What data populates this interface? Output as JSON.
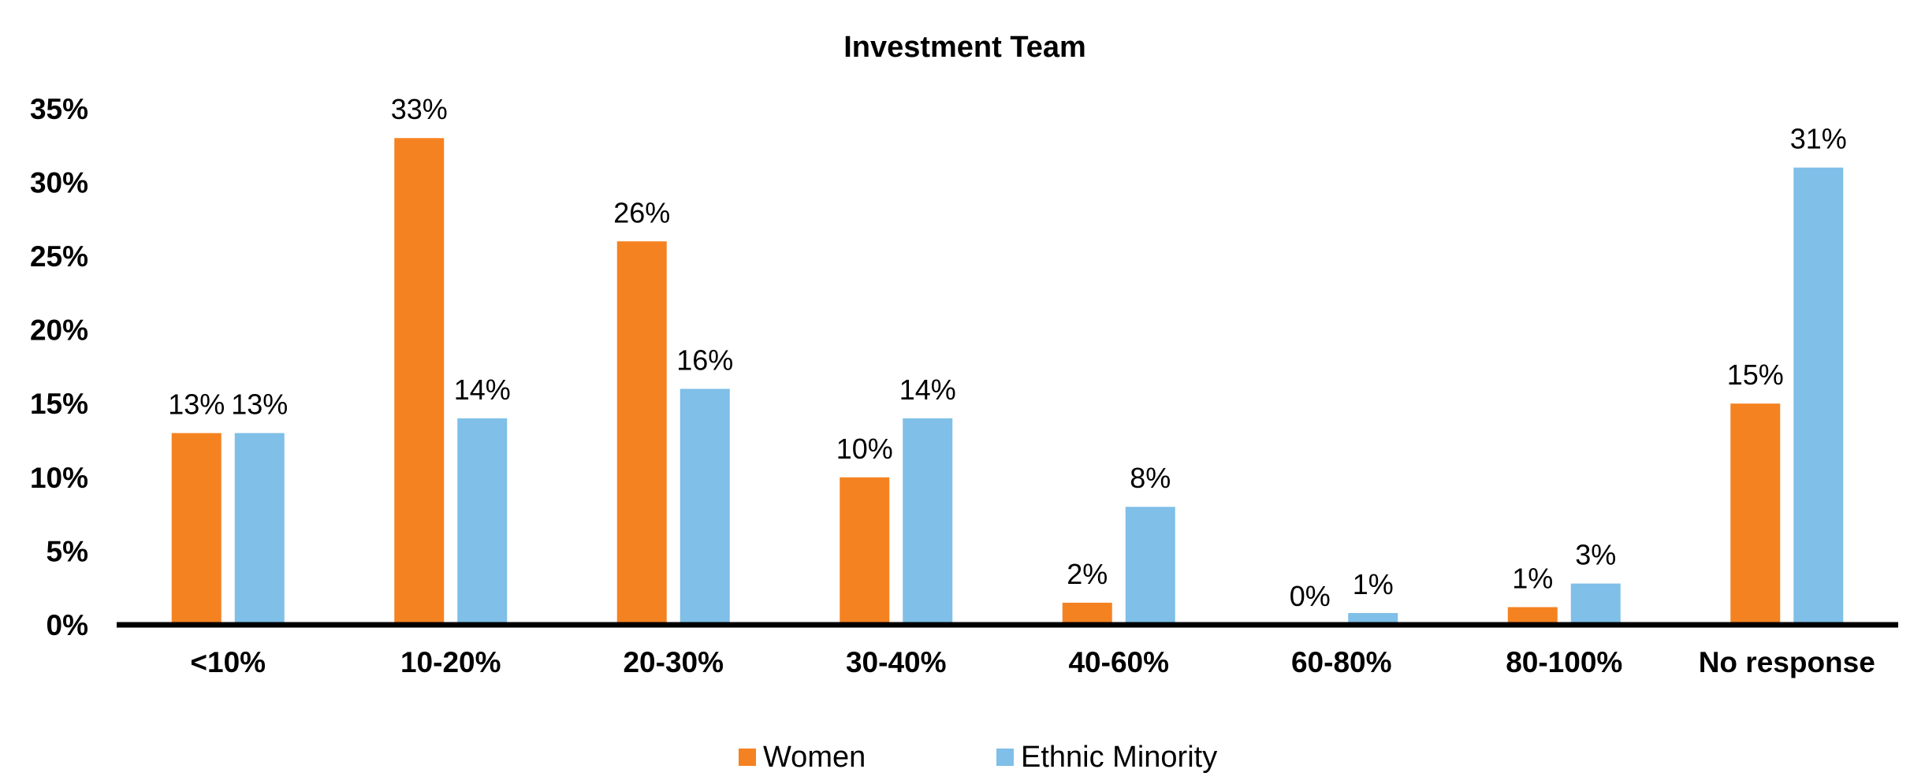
{
  "chart_data": {
    "type": "bar",
    "title": "Investment Team",
    "xlabel": "",
    "ylabel": "",
    "categories": [
      "<10%",
      "10-20%",
      "20-30%",
      "30-40%",
      "40-60%",
      "60-80%",
      "80-100%",
      "No response"
    ],
    "series": [
      {
        "name": "Women",
        "color": "#f58220",
        "values": [
          13,
          33,
          26,
          10,
          1.5,
          0,
          1.2,
          15
        ],
        "labels": [
          "13%",
          "33%",
          "26%",
          "10%",
          "2%",
          "0%",
          "1%",
          "15%"
        ]
      },
      {
        "name": "Ethnic Minority",
        "color": "#7fbfe8",
        "values": [
          13,
          14,
          16,
          14,
          8,
          0.8,
          2.8,
          31
        ],
        "labels": [
          "13%",
          "14%",
          "16%",
          "14%",
          "8%",
          "1%",
          "3%",
          "31%"
        ]
      }
    ],
    "ylim": [
      0,
      35
    ],
    "yticks": [
      "0%",
      "5%",
      "10%",
      "15%",
      "20%",
      "25%",
      "30%",
      "35%"
    ],
    "ytick_values": [
      0,
      5,
      10,
      15,
      20,
      25,
      30,
      35
    ],
    "grid": false,
    "legend": "bottom-center"
  }
}
